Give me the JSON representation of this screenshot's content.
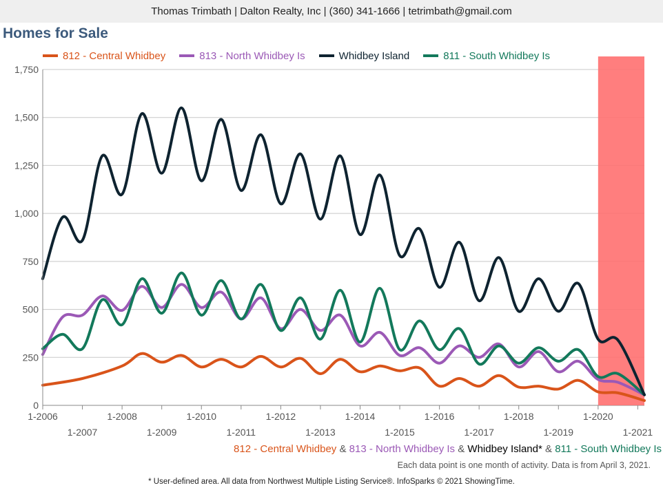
{
  "header": {
    "contact": "Thomas Trimbath | Dalton Realty, Inc | (360) 341-1666 | tetrimbath@gmail.com"
  },
  "footer": {
    "s1": "812 - Central Whidbey",
    "s2": "813 - North Whidbey Is",
    "s3": "Whidbey Island*",
    "s4": "811 - South Whidbey Is",
    "amp": "&",
    "note": "Each data point is one month of activity. Data is from April 3, 2021.",
    "source": "* User-defined area. All data from Northwest Multiple Listing Service®. InfoSparks © 2021 ShowingTime."
  },
  "colors": {
    "central": "#d9541a",
    "north": "#9b59b6",
    "island": "#0e2330",
    "south": "#13795b",
    "highlight": "#ff7070"
  },
  "chart_data": {
    "type": "line",
    "title": "Homes for Sale",
    "ylim": [
      0,
      1750
    ],
    "yticks": [
      0,
      250,
      500,
      750,
      1000,
      1250,
      1500,
      1750
    ],
    "ytick_labels": [
      "0",
      "250",
      "500",
      "750",
      "1,000",
      "1,250",
      "1,500",
      "1,750"
    ],
    "xlim": [
      "2006-01",
      "2021-03"
    ],
    "xticks_upper": [
      "1-2006",
      "1-2008",
      "1-2010",
      "1-2012",
      "1-2014",
      "1-2016",
      "1-2018",
      "1-2020"
    ],
    "xticks_lower": [
      "1-2007",
      "1-2009",
      "1-2011",
      "1-2013",
      "1-2015",
      "1-2017",
      "1-2019",
      "1-2021"
    ],
    "grid": true,
    "legend_position": "top",
    "highlight": {
      "from": "2020-01",
      "to": "2021-03"
    },
    "series": [
      {
        "name": "812 - Central Whidbey",
        "color": "#d9541a",
        "annual_points": [
          [
            "2006-01",
            105
          ],
          [
            "2007-01",
            140
          ],
          [
            "2008-01",
            205
          ],
          [
            "2008-07",
            270
          ],
          [
            "2009-01",
            225
          ],
          [
            "2009-07",
            260
          ],
          [
            "2010-01",
            200
          ],
          [
            "2010-07",
            240
          ],
          [
            "2011-01",
            200
          ],
          [
            "2011-07",
            255
          ],
          [
            "2012-01",
            200
          ],
          [
            "2012-07",
            245
          ],
          [
            "2013-01",
            165
          ],
          [
            "2013-07",
            240
          ],
          [
            "2014-01",
            175
          ],
          [
            "2014-07",
            205
          ],
          [
            "2015-01",
            180
          ],
          [
            "2015-07",
            195
          ],
          [
            "2016-01",
            100
          ],
          [
            "2016-07",
            140
          ],
          [
            "2017-01",
            100
          ],
          [
            "2017-07",
            155
          ],
          [
            "2018-01",
            95
          ],
          [
            "2018-07",
            100
          ],
          [
            "2019-01",
            85
          ],
          [
            "2019-07",
            130
          ],
          [
            "2020-01",
            70
          ],
          [
            "2020-07",
            65
          ],
          [
            "2021-03",
            25
          ]
        ]
      },
      {
        "name": "813 - North Whidbey Is",
        "color": "#9b59b6",
        "annual_points": [
          [
            "2006-01",
            265
          ],
          [
            "2006-07",
            460
          ],
          [
            "2007-01",
            470
          ],
          [
            "2007-07",
            570
          ],
          [
            "2008-01",
            495
          ],
          [
            "2008-07",
            620
          ],
          [
            "2009-01",
            510
          ],
          [
            "2009-07",
            630
          ],
          [
            "2010-01",
            510
          ],
          [
            "2010-07",
            590
          ],
          [
            "2011-01",
            450
          ],
          [
            "2011-07",
            560
          ],
          [
            "2012-01",
            400
          ],
          [
            "2012-07",
            500
          ],
          [
            "2013-01",
            390
          ],
          [
            "2013-07",
            470
          ],
          [
            "2014-01",
            310
          ],
          [
            "2014-07",
            380
          ],
          [
            "2015-01",
            260
          ],
          [
            "2015-07",
            300
          ],
          [
            "2016-01",
            220
          ],
          [
            "2016-07",
            310
          ],
          [
            "2017-01",
            250
          ],
          [
            "2017-07",
            320
          ],
          [
            "2018-01",
            200
          ],
          [
            "2018-07",
            280
          ],
          [
            "2019-01",
            175
          ],
          [
            "2019-07",
            230
          ],
          [
            "2020-01",
            135
          ],
          [
            "2020-07",
            120
          ],
          [
            "2021-03",
            55
          ]
        ]
      },
      {
        "name": "Whidbey Island*",
        "color": "#0e2330",
        "annual_points": [
          [
            "2006-01",
            660
          ],
          [
            "2006-07",
            980
          ],
          [
            "2007-01",
            860
          ],
          [
            "2007-07",
            1300
          ],
          [
            "2008-01",
            1100
          ],
          [
            "2008-07",
            1520
          ],
          [
            "2009-01",
            1210
          ],
          [
            "2009-07",
            1550
          ],
          [
            "2010-01",
            1170
          ],
          [
            "2010-07",
            1490
          ],
          [
            "2011-01",
            1120
          ],
          [
            "2011-07",
            1410
          ],
          [
            "2012-01",
            1050
          ],
          [
            "2012-07",
            1310
          ],
          [
            "2013-01",
            970
          ],
          [
            "2013-07",
            1300
          ],
          [
            "2014-01",
            890
          ],
          [
            "2014-07",
            1200
          ],
          [
            "2015-01",
            780
          ],
          [
            "2015-07",
            920
          ],
          [
            "2016-01",
            615
          ],
          [
            "2016-07",
            850
          ],
          [
            "2017-01",
            545
          ],
          [
            "2017-07",
            770
          ],
          [
            "2018-01",
            490
          ],
          [
            "2018-07",
            660
          ],
          [
            "2019-01",
            490
          ],
          [
            "2019-07",
            635
          ],
          [
            "2020-01",
            345
          ],
          [
            "2020-07",
            340
          ],
          [
            "2021-03",
            55
          ]
        ]
      },
      {
        "name": "811 - South Whidbey Is",
        "color": "#13795b",
        "annual_points": [
          [
            "2006-01",
            295
          ],
          [
            "2006-07",
            370
          ],
          [
            "2007-01",
            295
          ],
          [
            "2007-07",
            550
          ],
          [
            "2008-01",
            420
          ],
          [
            "2008-07",
            660
          ],
          [
            "2009-01",
            480
          ],
          [
            "2009-07",
            690
          ],
          [
            "2010-01",
            470
          ],
          [
            "2010-07",
            650
          ],
          [
            "2011-01",
            450
          ],
          [
            "2011-07",
            630
          ],
          [
            "2012-01",
            390
          ],
          [
            "2012-07",
            560
          ],
          [
            "2013-01",
            345
          ],
          [
            "2013-07",
            600
          ],
          [
            "2014-01",
            330
          ],
          [
            "2014-07",
            610
          ],
          [
            "2015-01",
            290
          ],
          [
            "2015-07",
            440
          ],
          [
            "2016-01",
            290
          ],
          [
            "2016-07",
            400
          ],
          [
            "2017-01",
            215
          ],
          [
            "2017-07",
            310
          ],
          [
            "2018-01",
            220
          ],
          [
            "2018-07",
            300
          ],
          [
            "2019-01",
            230
          ],
          [
            "2019-07",
            290
          ],
          [
            "2020-01",
            150
          ],
          [
            "2020-07",
            165
          ],
          [
            "2021-03",
            55
          ]
        ]
      }
    ]
  }
}
